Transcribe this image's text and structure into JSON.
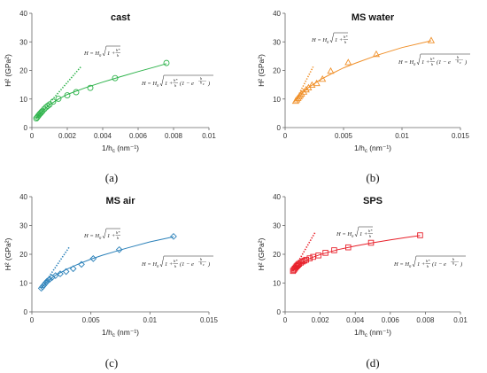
{
  "chart_data": [
    {
      "type": "scatter",
      "title": "cast",
      "caption": "(a)",
      "xlabel": "1/h",
      "xlabel_sub": "c",
      "xlabel_unit": "(nm⁻¹)",
      "ylabel": "H² (GPa²)",
      "xlim": [
        0,
        0.01
      ],
      "ylim": [
        0,
        40
      ],
      "xticks": [
        0,
        0.002,
        0.004,
        0.006,
        0.008,
        0.01
      ],
      "xtick_labels": [
        "0",
        "0.002",
        "0.004",
        "0.006",
        "0.008",
        "0.01"
      ],
      "yticks": [
        0,
        10,
        20,
        30,
        40
      ],
      "ytick_labels": [
        "0",
        "10",
        "20",
        "30",
        "40"
      ],
      "marker": "circle",
      "color": "#2eb34b",
      "points": {
        "x": [
          0.00025,
          0.0003,
          0.00035,
          0.0004,
          0.00045,
          0.0005,
          0.00055,
          0.0006,
          0.0007,
          0.0008,
          0.0009,
          0.001,
          0.0012,
          0.0015,
          0.002,
          0.0025,
          0.0033,
          0.0047,
          0.0076
        ],
        "y": [
          3.2,
          3.6,
          4.0,
          4.4,
          4.8,
          5.1,
          5.5,
          5.8,
          6.5,
          7.1,
          7.6,
          8.1,
          9.1,
          10.1,
          11.3,
          12.4,
          13.9,
          17.3,
          22.6
        ]
      },
      "fit_curve": {
        "x": [
          0.00025,
          0.0005,
          0.001,
          0.0015,
          0.002,
          0.003,
          0.004,
          0.005,
          0.006,
          0.007,
          0.0076
        ],
        "y": [
          3.3,
          5.2,
          8.0,
          10.0,
          11.6,
          13.9,
          15.9,
          17.8,
          19.6,
          21.3,
          22.4
        ]
      },
      "nix_gao_line": {
        "x": [
          0.00025,
          0.0028
        ],
        "y": [
          3.3,
          21.5
        ]
      },
      "eq_linear": {
        "lhs": "H = H",
        "sub0": "0",
        "body": "1 + ",
        "num": "h*",
        "den": "h"
      },
      "eq_modified": {
        "lhs": "H = H",
        "sub0": "0",
        "body": "1 + ",
        "num": "h*",
        "den": "h",
        "paren": "(1 − e",
        "exp_num": "h",
        "exp_den": "h",
        "exp_sub": "c",
        "close": ")"
      }
    },
    {
      "type": "scatter",
      "title": "MS water",
      "caption": "(b)",
      "xlabel": "1/h",
      "xlabel_sub": "c",
      "xlabel_unit": "(nm⁻¹)",
      "ylabel": "H² (GPa²)",
      "xlim": [
        0,
        0.015
      ],
      "ylim": [
        0,
        40
      ],
      "xticks": [
        0,
        0.005,
        0.01,
        0.015
      ],
      "xtick_labels": [
        "0",
        "0.005",
        "0.01",
        "0.015"
      ],
      "yticks": [
        0,
        10,
        20,
        30,
        40
      ],
      "ytick_labels": [
        "0",
        "10",
        "20",
        "30",
        "40"
      ],
      "marker": "triangle",
      "color": "#f0902a",
      "points": {
        "x": [
          0.0009,
          0.001,
          0.0011,
          0.0012,
          0.0013,
          0.0014,
          0.0016,
          0.0018,
          0.002,
          0.0023,
          0.0027,
          0.0032,
          0.0039,
          0.0054,
          0.0078,
          0.0125
        ],
        "y": [
          9.3,
          9.8,
          10.3,
          10.8,
          11.3,
          11.8,
          12.5,
          13.3,
          14.0,
          14.9,
          15.5,
          17.0,
          19.8,
          22.8,
          25.7,
          30.5
        ]
      },
      "fit_curve": {
        "x": [
          0.0009,
          0.0015,
          0.002,
          0.003,
          0.004,
          0.005,
          0.006,
          0.008,
          0.01,
          0.0125
        ],
        "y": [
          9.4,
          12.2,
          14.0,
          16.7,
          18.9,
          20.9,
          22.5,
          25.5,
          28.0,
          30.4
        ]
      },
      "nix_gao_line": {
        "x": [
          0.0009,
          0.0024
        ],
        "y": [
          9.4,
          21.3
        ]
      },
      "eq_linear": {
        "lhs": "H = H",
        "sub0": "0",
        "body": "1 + ",
        "num": "h*",
        "den": "h"
      },
      "eq_modified": {
        "lhs": "H = H",
        "sub0": "0",
        "body": "1 + ",
        "num": "h*",
        "den": "h",
        "paren": "(1 − e",
        "exp_num": "h",
        "exp_den": "h",
        "exp_sub": "c",
        "close": ")"
      }
    },
    {
      "type": "scatter",
      "title": "MS air",
      "caption": "(c)",
      "xlabel": "1/h",
      "xlabel_sub": "c",
      "xlabel_unit": "(nm⁻¹)",
      "ylabel": "H² (GPa²)",
      "xlim": [
        0,
        0.015
      ],
      "ylim": [
        0,
        40
      ],
      "xticks": [
        0,
        0.005,
        0.01,
        0.015
      ],
      "xtick_labels": [
        "0",
        "0.005",
        "0.01",
        "0.015"
      ],
      "yticks": [
        0,
        10,
        20,
        30,
        40
      ],
      "ytick_labels": [
        "0",
        "10",
        "20",
        "30",
        "40"
      ],
      "marker": "diamond",
      "color": "#2a80b9",
      "points": {
        "x": [
          0.0008,
          0.0009,
          0.001,
          0.0011,
          0.0012,
          0.0013,
          0.0015,
          0.0017,
          0.002,
          0.0024,
          0.0029,
          0.0035,
          0.0042,
          0.0052,
          0.0074,
          0.012
        ],
        "y": [
          8.2,
          8.7,
          9.2,
          9.7,
          10.2,
          10.7,
          11.3,
          11.9,
          12.6,
          13.2,
          14.0,
          15.0,
          16.5,
          18.5,
          21.6,
          26.2
        ]
      },
      "fit_curve": {
        "x": [
          0.0008,
          0.0015,
          0.002,
          0.003,
          0.004,
          0.005,
          0.006,
          0.008,
          0.01,
          0.012
        ],
        "y": [
          8.3,
          11.2,
          12.7,
          14.9,
          16.7,
          18.3,
          19.7,
          22.1,
          24.3,
          26.1
        ]
      },
      "nix_gao_line": {
        "x": [
          0.0008,
          0.0032
        ],
        "y": [
          8.3,
          22.7
        ]
      },
      "eq_linear": {
        "lhs": "H = H",
        "sub0": "0",
        "body": "1 + ",
        "num": "h*",
        "den": "h"
      },
      "eq_modified": {
        "lhs": "H = H",
        "sub0": "0",
        "body": "1 + ",
        "num": "h*",
        "den": "h",
        "paren": "(1 − e",
        "exp_num": "h",
        "exp_den": "h",
        "exp_sub": "c",
        "close": ")"
      }
    },
    {
      "type": "scatter",
      "title": "SPS",
      "caption": "(d)",
      "xlabel": "1/h",
      "xlabel_sub": "c",
      "xlabel_unit": "(nm⁻¹)",
      "ylabel": "H² (GPa²)",
      "xlim": [
        0,
        0.01
      ],
      "ylim": [
        0,
        40
      ],
      "xticks": [
        0,
        0.002,
        0.004,
        0.006,
        0.008,
        0.01
      ],
      "xtick_labels": [
        "0",
        "0.002",
        "0.004",
        "0.006",
        "0.008",
        "0.01"
      ],
      "yticks": [
        0,
        10,
        20,
        30,
        40
      ],
      "ytick_labels": [
        "0",
        "10",
        "20",
        "30",
        "40"
      ],
      "marker": "square",
      "color": "#e8202a",
      "points": {
        "x": [
          0.00045,
          0.0005,
          0.00055,
          0.0006,
          0.00065,
          0.0007,
          0.00075,
          0.0008,
          0.0009,
          0.001,
          0.0011,
          0.0012,
          0.0014,
          0.0016,
          0.0019,
          0.0023,
          0.0028,
          0.0036,
          0.0049,
          0.0077
        ],
        "y": [
          14.2,
          14.6,
          15.0,
          15.4,
          15.8,
          16.1,
          16.4,
          16.7,
          17.1,
          17.5,
          17.8,
          18.1,
          18.6,
          19.1,
          19.6,
          20.5,
          21.4,
          22.4,
          24.0,
          26.6
        ]
      },
      "fit_curve": {
        "x": [
          0.00045,
          0.0008,
          0.001,
          0.0015,
          0.002,
          0.003,
          0.004,
          0.005,
          0.006,
          0.007,
          0.0077
        ],
        "y": [
          14.3,
          16.5,
          17.3,
          18.8,
          19.9,
          21.6,
          22.9,
          24.0,
          25.0,
          25.9,
          26.5
        ]
      },
      "nix_gao_line": {
        "x": [
          0.00045,
          0.0017
        ],
        "y": [
          14.3,
          27.5
        ]
      },
      "eq_linear": {
        "lhs": "H = H",
        "sub0": "0",
        "body": "1 + ",
        "num": "h*",
        "den": "h"
      },
      "eq_modified": {
        "lhs": "H = H",
        "sub0": "0",
        "body": "1 + ",
        "num": "h*",
        "den": "h",
        "paren": "(1 − e",
        "exp_num": "h",
        "exp_den": "h",
        "exp_sub": "c",
        "close": ")"
      }
    }
  ]
}
